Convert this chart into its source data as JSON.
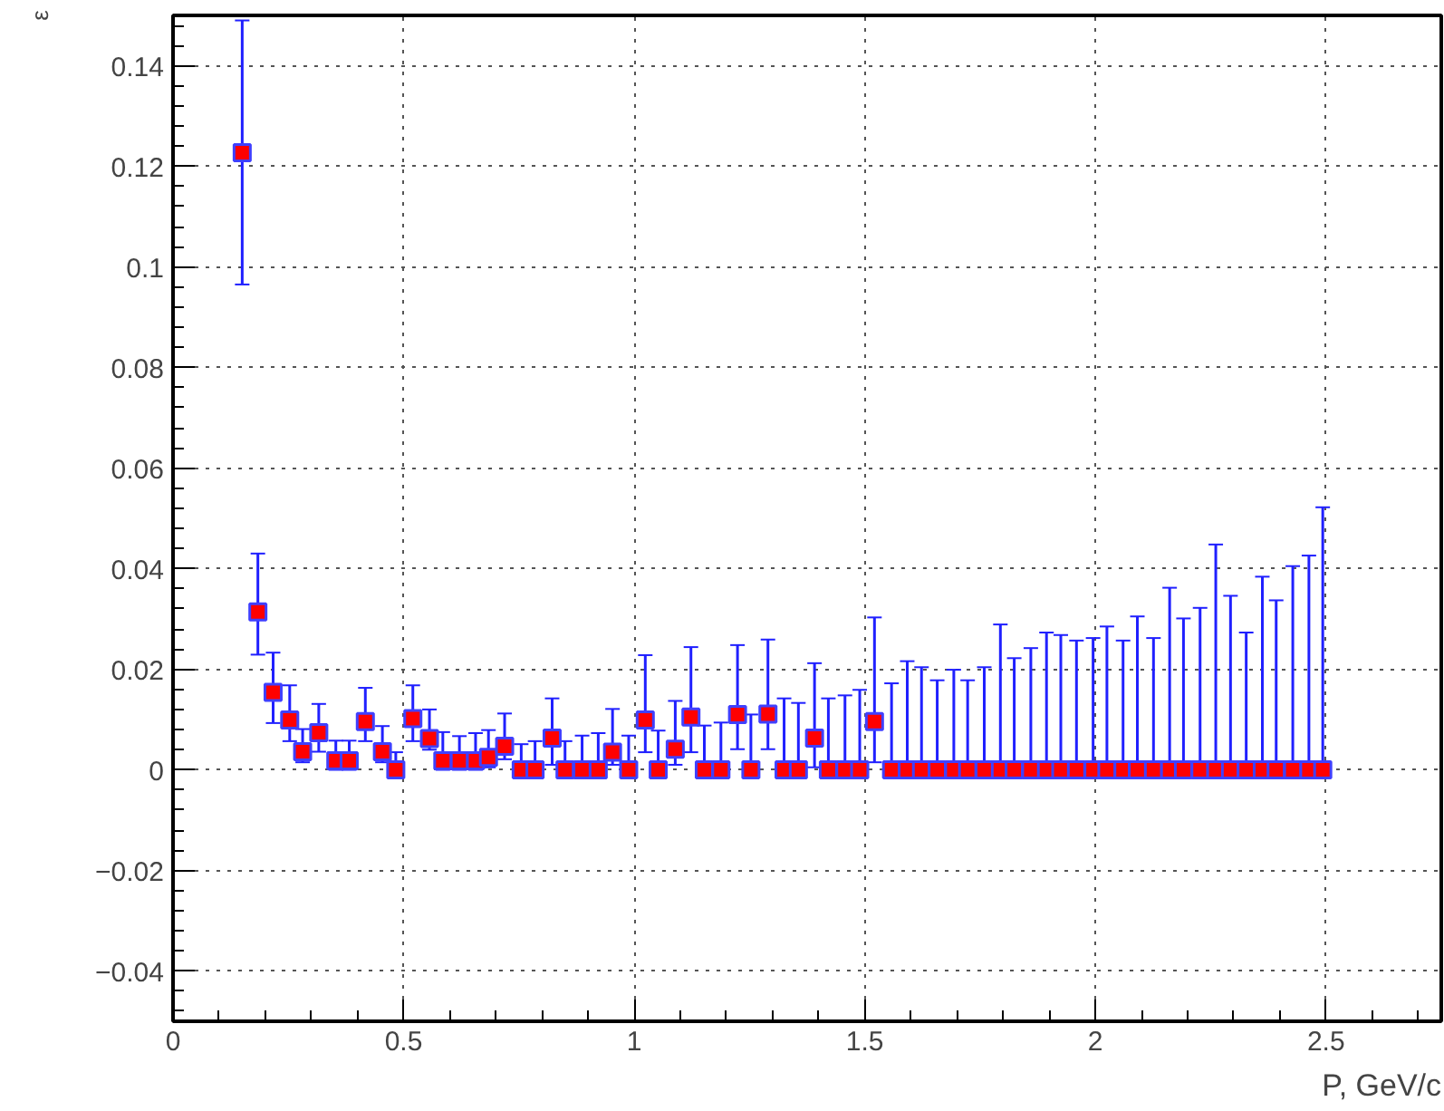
{
  "chart_data": {
    "type": "scatter",
    "xlabel": "P, GeV/c",
    "ylabel": "ε",
    "x": [
      0.15,
      0.184,
      0.217,
      0.253,
      0.281,
      0.316,
      0.353,
      0.382,
      0.417,
      0.454,
      0.483,
      0.52,
      0.556,
      0.585,
      0.621,
      0.656,
      0.684,
      0.719,
      0.755,
      0.785,
      0.822,
      0.85,
      0.887,
      0.922,
      0.953,
      0.988,
      1.024,
      1.052,
      1.089,
      1.123,
      1.152,
      1.188,
      1.224,
      1.253,
      1.29,
      1.325,
      1.356,
      1.391,
      1.421,
      1.457,
      1.489,
      1.521,
      1.558,
      1.592,
      1.623,
      1.657,
      1.693,
      1.723,
      1.759,
      1.794,
      1.824,
      1.86,
      1.894,
      1.925,
      1.959,
      1.995,
      2.025,
      2.06,
      2.091,
      2.126,
      2.161,
      2.191,
      2.227,
      2.261,
      2.293,
      2.327,
      2.362,
      2.392,
      2.428,
      2.463,
      2.493
    ],
    "series": [
      {
        "color": "#ff0000",
        "values": [
          0.1227,
          0.0314,
          0.0154,
          0.0099,
          0.0036,
          0.0074,
          0.0018,
          0.0018,
          0.0096,
          0.0036,
          0,
          0.0102,
          0.0062,
          0.0018,
          0.0018,
          0.0018,
          0.0025,
          0.0047,
          0,
          0,
          0.0063,
          0,
          0,
          0,
          0.0035,
          0,
          0.0099,
          0,
          0.0041,
          0.0105,
          0,
          0,
          0.011,
          0,
          0.0111,
          0,
          0,
          0.0063,
          0,
          0,
          0,
          0.0096,
          0,
          0,
          0,
          0,
          0,
          0,
          0,
          0,
          0,
          0,
          0,
          0,
          0,
          0,
          0,
          0,
          0,
          0,
          0,
          0,
          0,
          0,
          0,
          0,
          0,
          0,
          0,
          0,
          0
        ],
        "errors": [
          [
            0.0965,
            0.149
          ],
          [
            0.0229,
            0.043
          ],
          [
            0.0093,
            0.0233
          ],
          [
            0.0057,
            0.0168
          ],
          [
            0.0015,
            0.0081
          ],
          [
            0.0036,
            0.0131
          ],
          [
            0,
            0.0058
          ],
          [
            0,
            0.0058
          ],
          [
            0.0057,
            0.0163
          ],
          [
            0.0015,
            0.0087
          ],
          [
            0,
            0.0035
          ],
          [
            0.0057,
            0.0168
          ],
          [
            0.004,
            0.012
          ],
          [
            0,
            0.0075
          ],
          [
            0,
            0.0067
          ],
          [
            0,
            0.0073
          ],
          [
            0.0005,
            0.0079
          ],
          [
            0.0021,
            0.0112
          ],
          [
            0,
            0.0051
          ],
          [
            0,
            0.0057
          ],
          [
            0.001,
            0.0142
          ],
          [
            0,
            0.0057
          ],
          [
            0,
            0.0068
          ],
          [
            0,
            0.0073
          ],
          [
            0.001,
            0.0121
          ],
          [
            0,
            0.0068
          ],
          [
            0.0035,
            0.0228
          ],
          [
            0,
            0.0078
          ],
          [
            0.001,
            0.0137
          ],
          [
            0.0035,
            0.0244
          ],
          [
            0,
            0.0088
          ],
          [
            0,
            0.0094
          ],
          [
            0.0041,
            0.0248
          ],
          [
            0,
            0.011
          ],
          [
            0.0041,
            0.0259
          ],
          [
            0,
            0.0142
          ],
          [
            0,
            0.0133
          ],
          [
            0.0005,
            0.0212
          ],
          [
            0,
            0.0142
          ],
          [
            0,
            0.0148
          ],
          [
            0,
            0.0159
          ],
          [
            0.0015,
            0.0303
          ],
          [
            0,
            0.0172
          ],
          [
            0,
            0.0216
          ],
          [
            0,
            0.0204
          ],
          [
            0,
            0.0178
          ],
          [
            0,
            0.0199
          ],
          [
            0,
            0.0178
          ],
          [
            0,
            0.0204
          ],
          [
            0,
            0.0289
          ],
          [
            0,
            0.0222
          ],
          [
            0,
            0.0242
          ],
          [
            0,
            0.0273
          ],
          [
            0,
            0.0268
          ],
          [
            0,
            0.0257
          ],
          [
            0,
            0.0262
          ],
          [
            0,
            0.0285
          ],
          [
            0,
            0.0257
          ],
          [
            0,
            0.0305
          ],
          [
            0,
            0.0262
          ],
          [
            0,
            0.0362
          ],
          [
            0,
            0.0301
          ],
          [
            0,
            0.0322
          ],
          [
            0,
            0.0448
          ],
          [
            0,
            0.0346
          ],
          [
            0,
            0.0273
          ],
          [
            0,
            0.0384
          ],
          [
            0,
            0.0337
          ],
          [
            0,
            0.0405
          ],
          [
            0,
            0.0426
          ],
          [
            0,
            0.0522
          ]
        ]
      }
    ],
    "xlim": [
      0,
      2.75
    ],
    "ylim": [
      -0.05,
      0.15
    ],
    "xticks": [
      0,
      0.5,
      1,
      1.5,
      2,
      2.5
    ],
    "yticks": [
      {
        "value": -0.04,
        "label": "−0.04"
      },
      {
        "value": -0.02,
        "label": "−0.02"
      },
      0,
      0.02,
      0.04,
      0.06,
      0.08,
      0.1,
      0.12,
      0.14
    ],
    "grid": true,
    "marker": "square"
  }
}
